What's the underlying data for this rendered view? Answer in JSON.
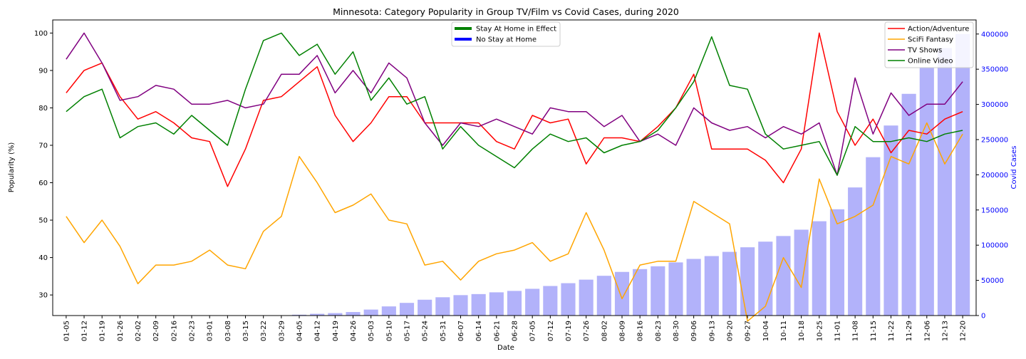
{
  "chart_data": {
    "type": "line",
    "title": "Minnesota: Category Popularity in Group TV/Film vs Covid Cases, during 2020",
    "xlabel": "Date",
    "ylabel": "Popularity (%)",
    "y2label": "Covid Cases",
    "ylim": [
      24.5,
      103.5
    ],
    "y2lim": [
      0,
      420000
    ],
    "yticks": [
      30,
      40,
      50,
      60,
      70,
      80,
      90,
      100
    ],
    "y2ticks": [
      0,
      50000,
      100000,
      150000,
      200000,
      250000,
      300000,
      350000,
      400000
    ],
    "y2ticklabels": [
      "0",
      "50000",
      "100000",
      "150000",
      "200000",
      "250000",
      "300000",
      "350000",
      "400000"
    ],
    "categories": [
      "01-05",
      "01-12",
      "01-19",
      "01-26",
      "02-02",
      "02-09",
      "02-16",
      "02-23",
      "03-01",
      "03-08",
      "03-15",
      "03-22",
      "03-29",
      "04-05",
      "04-12",
      "04-19",
      "04-26",
      "05-03",
      "05-10",
      "05-17",
      "05-24",
      "05-31",
      "06-07",
      "06-14",
      "06-21",
      "06-28",
      "07-05",
      "07-12",
      "07-19",
      "07-26",
      "08-02",
      "08-09",
      "08-16",
      "08-23",
      "08-30",
      "09-06",
      "09-13",
      "09-20",
      "09-27",
      "10-04",
      "10-11",
      "10-18",
      "10-25",
      "11-01",
      "11-08",
      "11-15",
      "11-22",
      "11-29",
      "12-06",
      "12-13",
      "12-20"
    ],
    "series": [
      {
        "name": "Action/Adventure",
        "color": "#ff0000",
        "values": [
          84,
          90,
          92,
          83,
          77,
          79,
          76,
          72,
          71,
          59,
          69,
          82,
          83,
          87,
          91,
          78,
          71,
          76,
          83,
          83,
          76,
          76,
          76,
          76,
          71,
          69,
          78,
          76,
          77,
          65,
          72,
          72,
          71,
          75,
          80,
          89,
          69,
          69,
          69,
          66,
          60,
          69,
          100,
          79,
          70,
          77,
          68,
          74,
          73,
          77,
          79
        ]
      },
      {
        "name": "SciFi Fantasy",
        "color": "#ffa500",
        "values": [
          51,
          44,
          50,
          43,
          33,
          38,
          38,
          39,
          42,
          38,
          37,
          47,
          51,
          67,
          60,
          52,
          54,
          57,
          50,
          49,
          38,
          39,
          34,
          39,
          41,
          42,
          44,
          39,
          41,
          52,
          42,
          29,
          38,
          39,
          39,
          55,
          52,
          49,
          23,
          27,
          40,
          32,
          61,
          49,
          51,
          54,
          67,
          65,
          76,
          65,
          73
        ]
      },
      {
        "name": "TV Shows",
        "color": "#800080",
        "values": [
          93,
          100,
          92,
          82,
          83,
          86,
          85,
          81,
          81,
          82,
          80,
          81,
          89,
          89,
          94,
          84,
          90,
          84,
          92,
          88,
          76,
          70,
          76,
          75,
          77,
          75,
          73,
          80,
          79,
          79,
          75,
          78,
          71,
          73,
          70,
          80,
          76,
          74,
          75,
          72,
          75,
          73,
          76,
          62,
          88,
          73,
          84,
          78,
          81,
          81,
          87
        ]
      },
      {
        "name": "Online Video",
        "color": "#008000",
        "values": [
          79,
          83,
          85,
          72,
          75,
          76,
          73,
          78,
          74,
          70,
          85,
          98,
          100,
          94,
          97,
          89,
          95,
          82,
          88,
          81,
          83,
          69,
          75,
          70,
          67,
          64,
          69,
          73,
          71,
          72,
          68,
          70,
          71,
          74,
          80,
          87,
          99,
          86,
          85,
          73,
          69,
          70,
          71,
          62,
          75,
          71,
          71,
          72,
          71,
          73,
          74
        ]
      }
    ],
    "covid_cases": [
      0,
      0,
      0,
      0,
      0,
      0,
      0,
      0,
      0,
      0,
      0,
      0,
      400,
      1200,
      2500,
      3500,
      5000,
      8500,
      13000,
      18000,
      22500,
      26000,
      29000,
      30500,
      33000,
      35000,
      38000,
      42000,
      46000,
      51000,
      56500,
      62000,
      66000,
      70000,
      75500,
      80500,
      84500,
      90500,
      97000,
      105000,
      113000,
      122000,
      134000,
      151000,
      182000,
      225000,
      270000,
      315000,
      352000,
      380000,
      400000
    ],
    "bar_color": "#b2b2fa",
    "legend_left": [
      {
        "label": "Stay At Home in Effect",
        "color": "#008000"
      },
      {
        "label": "No Stay at Home",
        "color": "#0000ff"
      }
    ],
    "legend_placement_left": "upper center",
    "legend_placement_right": "upper right",
    "grid": false
  }
}
